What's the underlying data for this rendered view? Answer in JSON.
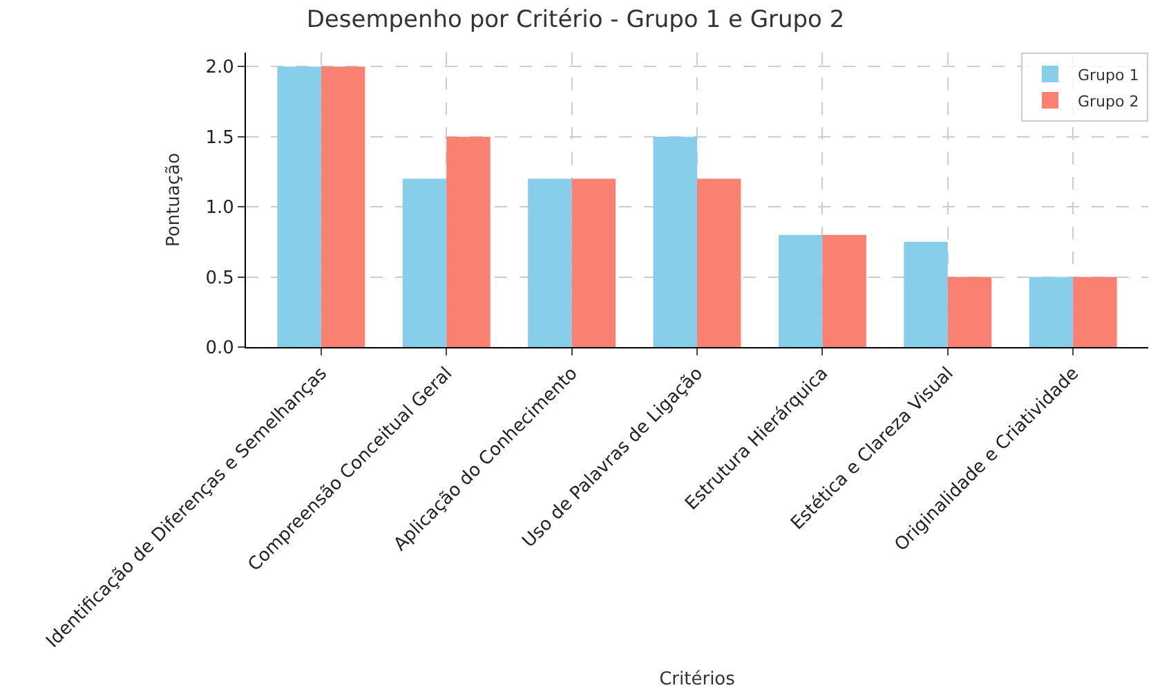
{
  "chart_data": {
    "type": "bar",
    "title": "Desempenho por Critério - Grupo 1 e Grupo 2",
    "xlabel": "Critérios",
    "ylabel": "Pontuação",
    "categories": [
      "Identificação de Diferenças e Semelhanças",
      "Compreensão Conceitual Geral",
      "Aplicação do Conhecimento",
      "Uso de Palavras de Ligação",
      "Estrutura Hierárquica",
      "Estética e Clareza Visual",
      "Originalidade e Criatividade"
    ],
    "series": [
      {
        "name": "Grupo 1",
        "color": "#87ceeb",
        "values": [
          2.0,
          1.2,
          1.2,
          1.5,
          0.8,
          0.75,
          0.5
        ]
      },
      {
        "name": "Grupo 2",
        "color": "#fa8072",
        "values": [
          2.0,
          1.5,
          1.2,
          1.2,
          0.8,
          0.5,
          0.5
        ]
      }
    ],
    "ylim": [
      0,
      2.1
    ],
    "yticks": [
      {
        "value": 0,
        "label": "0.0"
      },
      {
        "value": 0.5,
        "label": "0.5"
      },
      {
        "value": 1,
        "label": "1.0"
      },
      {
        "value": 1.5,
        "label": "1.5"
      },
      {
        "value": 2,
        "label": "2.0"
      }
    ],
    "grid": true,
    "legend": "top right"
  }
}
